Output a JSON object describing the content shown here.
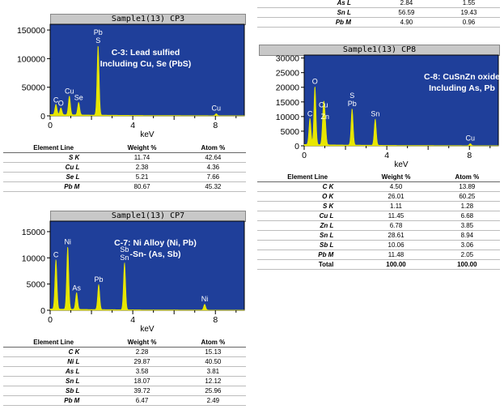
{
  "top_table": {
    "rows": [
      {
        "element": "As L",
        "weight": "2.84",
        "atom": "1.55"
      },
      {
        "element": "Sn L",
        "weight": "56.59",
        "atom": "19.43"
      },
      {
        "element": "Pb M",
        "weight": "4.90",
        "atom": "0.96"
      }
    ]
  },
  "chart_data": [
    {
      "type": "line",
      "title": "Sample1(13) CP3",
      "xlabel": "keV",
      "xlim": [
        0,
        9.4
      ],
      "ylim": [
        0,
        160000
      ],
      "xticks": [
        "0",
        "4",
        "8"
      ],
      "xtick_values": [
        0,
        4,
        8
      ],
      "yticks": [
        "0",
        "50000",
        "100000",
        "150000"
      ],
      "ytick_values": [
        0,
        50000,
        100000,
        150000
      ],
      "annotation": "C-3: Lead sulfied Including Cu, Se (PbS)",
      "peaks": [
        {
          "x": 0.28,
          "y": 18000,
          "label": "C"
        },
        {
          "x": 0.52,
          "y": 12000,
          "label": "O"
        },
        {
          "x": 0.93,
          "y": 33000,
          "label": "Cu"
        },
        {
          "x": 1.38,
          "y": 22000,
          "label": "Se"
        },
        {
          "x": 2.32,
          "y": 122000,
          "label": "Pb S"
        },
        {
          "x": 8.04,
          "y": 3500,
          "label": "Cu"
        }
      ],
      "table": {
        "headers": [
          "Element Line",
          "Weight %",
          "Atom %"
        ],
        "rows": [
          {
            "element": "S K",
            "weight": "11.74",
            "atom": "42.64"
          },
          {
            "element": "Cu L",
            "weight": "2.38",
            "atom": "4.36"
          },
          {
            "element": "Se L",
            "weight": "5.21",
            "atom": "7.66"
          },
          {
            "element": "Pb M",
            "weight": "80.67",
            "atom": "45.32"
          }
        ]
      }
    },
    {
      "type": "line",
      "title": "Sample1(13) CP7",
      "xlabel": "keV",
      "xlim": [
        0,
        9.4
      ],
      "ylim": [
        0,
        17000
      ],
      "xticks": [
        "0",
        "4",
        "8"
      ],
      "xtick_values": [
        0,
        4,
        8
      ],
      "yticks": [
        "0",
        "5000",
        "10000",
        "15000"
      ],
      "ytick_values": [
        0,
        5000,
        10000,
        15000
      ],
      "annotation": "C-7: Ni Alloy (Ni, Pb) -Sn- (As, Sb)",
      "peaks": [
        {
          "x": 0.28,
          "y": 9500,
          "label": "C"
        },
        {
          "x": 0.85,
          "y": 12000,
          "label": "Ni"
        },
        {
          "x": 1.28,
          "y": 3200,
          "label": "As"
        },
        {
          "x": 2.35,
          "y": 4800,
          "label": "Pb"
        },
        {
          "x": 3.6,
          "y": 9000,
          "label": "Sb Sn"
        },
        {
          "x": 7.48,
          "y": 1100,
          "label": "Ni"
        }
      ],
      "table": {
        "headers": [
          "Element Line",
          "Weight %",
          "Atom %"
        ],
        "rows": [
          {
            "element": "C K",
            "weight": "2.28",
            "atom": "15.13"
          },
          {
            "element": "Ni L",
            "weight": "29.87",
            "atom": "40.50"
          },
          {
            "element": "As L",
            "weight": "3.58",
            "atom": "3.81"
          },
          {
            "element": "Sn L",
            "weight": "18.07",
            "atom": "12.12"
          },
          {
            "element": "Sb L",
            "weight": "39.72",
            "atom": "25.96"
          },
          {
            "element": "Pb M",
            "weight": "6.47",
            "atom": "2.49"
          }
        ]
      }
    },
    {
      "type": "line",
      "title": "Sample1(13) CP8",
      "xlabel": "keV",
      "xlim": [
        0,
        9.4
      ],
      "ylim": [
        0,
        31000
      ],
      "xticks": [
        "0",
        "4",
        "8"
      ],
      "xtick_values": [
        0,
        4,
        8
      ],
      "yticks": [
        "0",
        "5000",
        "10000",
        "15000",
        "20000",
        "25000",
        "30000"
      ],
      "ytick_values": [
        0,
        5000,
        10000,
        15000,
        20000,
        25000,
        30000
      ],
      "annotation": "C-8: CuSnZn oxide Including As, Pb",
      "peaks": [
        {
          "x": 0.28,
          "y": 9000,
          "label": "C"
        },
        {
          "x": 0.52,
          "y": 20000,
          "label": "O"
        },
        {
          "x": 0.93,
          "y": 12000,
          "label": "Cu"
        },
        {
          "x": 1.01,
          "y": 8000,
          "label": "Zn"
        },
        {
          "x": 2.32,
          "y": 12500,
          "label": "S Pb"
        },
        {
          "x": 3.44,
          "y": 9000,
          "label": "Sn"
        },
        {
          "x": 8.04,
          "y": 700,
          "label": "Cu"
        }
      ],
      "table": {
        "headers": [
          "Element Line",
          "Weight %",
          "Atom %"
        ],
        "rows": [
          {
            "element": "C K",
            "weight": "4.50",
            "atom": "13.89"
          },
          {
            "element": "O K",
            "weight": "26.01",
            "atom": "60.25"
          },
          {
            "element": "S K",
            "weight": "1.11",
            "atom": "1.28"
          },
          {
            "element": "Cu L",
            "weight": "11.45",
            "atom": "6.68"
          },
          {
            "element": "Zn L",
            "weight": "6.78",
            "atom": "3.85"
          },
          {
            "element": "Sn L",
            "weight": "28.61",
            "atom": "8.94"
          },
          {
            "element": "Sb L",
            "weight": "10.06",
            "atom": "3.06"
          },
          {
            "element": "Pb M",
            "weight": "11.48",
            "atom": "2.05"
          }
        ],
        "total": {
          "element": "Total",
          "weight": "100.00",
          "atom": "100.00"
        }
      }
    }
  ],
  "colors": {
    "plot_bg": "#1f3f9a",
    "trace": "#e7e600",
    "annotation": "#ffffff",
    "label": "#ffffff"
  }
}
